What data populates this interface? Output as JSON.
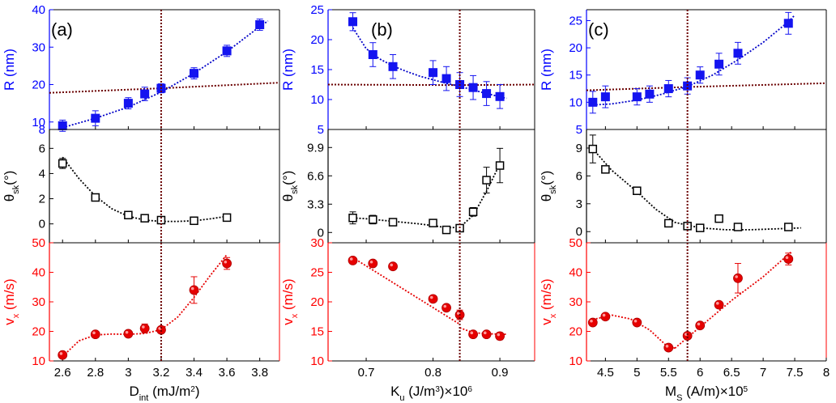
{
  "columns": [
    {
      "panel_label": "(a)",
      "x_label_main": "D",
      "x_label_sub": "int",
      "x_label_rest": " (mJ/m",
      "x_label_sup": "2",
      "x_label_end": ")",
      "x_range": [
        2.52,
        3.92
      ],
      "x_ticks": [
        2.6,
        2.8,
        3.0,
        3.2,
        3.4,
        3.6,
        3.8
      ],
      "x_tick_labels": [
        "2.6",
        "2.8",
        "3",
        "3.2",
        "3.4",
        "3.6",
        "3.8"
      ],
      "vline": 3.2
    },
    {
      "panel_label": "(b)",
      "x_label_main": "K",
      "x_label_sub": "u",
      "x_label_rest": " (J/m",
      "x_label_sup": "3",
      "x_label_end": ")×10",
      "x_label_sup2": "6",
      "x_range": [
        0.643,
        0.952
      ],
      "x_ticks": [
        0.7,
        0.8,
        0.9
      ],
      "x_tick_labels": [
        "0.7",
        "0.8",
        "0.9"
      ],
      "vline": 0.84
    },
    {
      "panel_label": "(c)",
      "x_label_main": "M",
      "x_label_sub": "S",
      "x_label_rest": " (A/m)×10",
      "x_label_sup": "5",
      "x_label_end": "",
      "x_range": [
        4.2,
        8.0
      ],
      "x_ticks": [
        4.5,
        5,
        5.5,
        6,
        6.5,
        7,
        7.5,
        8
      ],
      "x_tick_labels": [
        "4.5",
        "5",
        "5.5",
        "6",
        "6.5",
        "7",
        "7.5",
        "8"
      ],
      "vline": 5.8
    }
  ],
  "rows": [
    {
      "label_main": "R (nm)",
      "color": "#0000ff"
    },
    {
      "label_main": "θ",
      "label_sub": "sk",
      "label_rest": "(°)",
      "color": "#000000"
    },
    {
      "label_main": "v",
      "label_sub": "x",
      "label_rest": " (m/s)",
      "color": "#ff0000"
    }
  ],
  "chart_data": [
    {
      "id": "a-R",
      "type": "scatter",
      "ylabel": "R (nm)",
      "ylim": [
        8,
        40
      ],
      "yticks": [
        10,
        20,
        30,
        40
      ],
      "ytick_labels": [
        "10",
        "20",
        "30",
        "40"
      ],
      "ymin_label": "8",
      "x": [
        2.6,
        2.8,
        3.0,
        3.1,
        3.2,
        3.4,
        3.6,
        3.8
      ],
      "y": [
        9,
        11,
        15,
        17.5,
        19,
        23,
        29,
        36
      ],
      "err": [
        1.5,
        2,
        1.5,
        1.8,
        1.2,
        1.5,
        1.5,
        1.5
      ],
      "marker": "square-filled",
      "color": "#1414f0",
      "fit": [
        [
          2.6,
          8.5
        ],
        [
          2.8,
          11
        ],
        [
          3.0,
          14
        ],
        [
          3.2,
          18
        ],
        [
          3.4,
          23
        ],
        [
          3.6,
          28.8
        ],
        [
          3.8,
          35.5
        ],
        [
          3.85,
          37
        ]
      ],
      "fit_color": "#0000c8",
      "ref_line": [
        [
          2.52,
          17.8
        ],
        [
          3.2,
          19
        ],
        [
          3.92,
          20.5
        ]
      ]
    },
    {
      "id": "a-theta",
      "type": "scatter",
      "ylabel": "θsk(°)",
      "ylim": [
        -1.5,
        7.5
      ],
      "yticks": [
        0,
        2,
        4,
        6
      ],
      "ytick_labels": [
        "0",
        "2",
        "4",
        "6"
      ],
      "x": [
        2.6,
        2.8,
        3.0,
        3.1,
        3.2,
        3.4,
        3.6
      ],
      "y": [
        4.8,
        2.1,
        0.7,
        0.45,
        0.3,
        0.25,
        0.5
      ],
      "err": [
        0.4,
        0.1,
        0.1,
        0.1,
        0.1,
        0.1,
        0.1
      ],
      "marker": "square-open",
      "color": "#000000",
      "fit": [
        [
          2.6,
          5.3
        ],
        [
          2.7,
          3.6
        ],
        [
          2.8,
          2.2
        ],
        [
          2.9,
          1.2
        ],
        [
          3.0,
          0.6
        ],
        [
          3.1,
          0.3
        ],
        [
          3.2,
          0.2
        ],
        [
          3.3,
          0.2
        ],
        [
          3.4,
          0.25
        ],
        [
          3.5,
          0.4
        ],
        [
          3.6,
          0.6
        ]
      ],
      "fit_color": "#000000"
    },
    {
      "id": "a-v",
      "type": "scatter",
      "ylabel": "vx (m/s)",
      "ylim": [
        10,
        50
      ],
      "yticks": [
        10,
        20,
        30,
        40,
        50
      ],
      "ytick_labels": [
        "10",
        "20",
        "30",
        "40",
        "50"
      ],
      "x": [
        2.6,
        2.8,
        3.0,
        3.1,
        3.2,
        3.4,
        3.6
      ],
      "y": [
        12,
        19,
        19.2,
        21,
        20.5,
        34,
        43
      ],
      "err": [
        0,
        0,
        0,
        1.5,
        0,
        4.5,
        2
      ],
      "marker": "circle-filled",
      "color": "#e60000",
      "fit": [
        [
          2.6,
          11.5
        ],
        [
          2.7,
          16.8
        ],
        [
          2.8,
          18.8
        ],
        [
          2.9,
          19.1
        ],
        [
          3.0,
          19.0
        ],
        [
          3.1,
          19.3
        ],
        [
          3.2,
          20.6
        ],
        [
          3.3,
          24.8
        ],
        [
          3.4,
          31.5
        ],
        [
          3.5,
          39.0
        ],
        [
          3.6,
          46
        ]
      ],
      "fit_color": "#e60000"
    },
    {
      "id": "b-R",
      "type": "scatter",
      "ylabel": "R (nm)",
      "ylim": [
        5,
        25
      ],
      "yticks": [
        5,
        10,
        15,
        20,
        25
      ],
      "ytick_labels": [
        "5",
        "10",
        "15",
        "20",
        "25"
      ],
      "x": [
        0.68,
        0.71,
        0.74,
        0.8,
        0.82,
        0.84,
        0.86,
        0.88,
        0.9
      ],
      "y": [
        23,
        17.5,
        15.5,
        14.5,
        13.5,
        12.5,
        12,
        11,
        10.5
      ],
      "err": [
        1.5,
        2,
        2,
        2,
        2,
        2,
        2,
        2,
        2
      ],
      "marker": "square-filled",
      "color": "#1414f0",
      "fit": [
        [
          0.68,
          22.0
        ],
        [
          0.7,
          18.5
        ],
        [
          0.72,
          16.8
        ],
        [
          0.74,
          15.6
        ],
        [
          0.76,
          14.7
        ],
        [
          0.78,
          13.9
        ],
        [
          0.8,
          13.3
        ],
        [
          0.82,
          12.7
        ],
        [
          0.84,
          12.2
        ],
        [
          0.86,
          11.6
        ],
        [
          0.88,
          11.0
        ],
        [
          0.91,
          10.2
        ]
      ],
      "fit_color": "#0000c8",
      "ref_line": [
        [
          0.643,
          12.5
        ],
        [
          0.84,
          12.4
        ],
        [
          0.952,
          12.5
        ]
      ]
    },
    {
      "id": "b-theta",
      "type": "scatter",
      "ylabel": "θsk(°)",
      "ylim": [
        -1.2,
        12
      ],
      "yticks": [
        0,
        3.3,
        6.6,
        9.9
      ],
      "ytick_labels": [
        "0",
        "3.3",
        "6.6",
        "9.9"
      ],
      "x": [
        0.68,
        0.71,
        0.74,
        0.8,
        0.82,
        0.84,
        0.86,
        0.88,
        0.9
      ],
      "y": [
        1.7,
        1.5,
        1.2,
        1.1,
        0.3,
        0.5,
        2.4,
        6.1,
        7.8
      ],
      "err": [
        0.7,
        0.5,
        0.3,
        0.3,
        0.2,
        0.2,
        0.5,
        1.5,
        2
      ],
      "marker": "square-open",
      "color": "#000000",
      "fit": [
        [
          0.68,
          1.7
        ],
        [
          0.7,
          1.6
        ],
        [
          0.72,
          1.45
        ],
        [
          0.74,
          1.3
        ],
        [
          0.76,
          1.15
        ],
        [
          0.78,
          1.0
        ],
        [
          0.8,
          0.8
        ],
        [
          0.82,
          0.55
        ],
        [
          0.84,
          0.6
        ],
        [
          0.86,
          2.0
        ],
        [
          0.88,
          4.8
        ],
        [
          0.9,
          8.0
        ]
      ],
      "fit_color": "#000000"
    },
    {
      "id": "b-v",
      "type": "scatter",
      "ylabel": "vx (m/s)",
      "ylim": [
        10,
        30
      ],
      "yticks": [
        10,
        15,
        20,
        25,
        30
      ],
      "ytick_labels": [
        "10",
        "15",
        "20",
        "25",
        "30"
      ],
      "x": [
        0.68,
        0.71,
        0.74,
        0.8,
        0.82,
        0.84,
        0.86,
        0.88,
        0.9
      ],
      "y": [
        27,
        26.5,
        26,
        20.5,
        19,
        17.8,
        14.5,
        14.5,
        14.2
      ],
      "err": [
        0,
        0,
        0,
        0,
        0,
        0.8,
        0,
        0,
        0.6
      ],
      "marker": "circle-filled",
      "color": "#e60000",
      "fit": [
        [
          0.68,
          27.5
        ],
        [
          0.84,
          16.2
        ]
      ],
      "fit2": [
        [
          0.84,
          15.6
        ],
        [
          0.86,
          14.8
        ],
        [
          0.88,
          14.6
        ],
        [
          0.91,
          14.5
        ]
      ],
      "fit_color": "#e60000"
    },
    {
      "id": "c-R",
      "type": "scatter",
      "ylabel": "R (nm)",
      "ylim": [
        5,
        27
      ],
      "yticks": [
        5,
        10,
        15,
        20,
        25
      ],
      "ytick_labels": [
        "5",
        "10",
        "15",
        "20",
        "25"
      ],
      "x": [
        4.3,
        4.5,
        5.0,
        5.2,
        5.5,
        5.8,
        6.0,
        6.3,
        6.6,
        7.4
      ],
      "y": [
        10,
        11,
        11,
        11.5,
        12.5,
        13,
        15,
        17,
        19,
        24.5
      ],
      "err": [
        2,
        2,
        1.5,
        1.5,
        1.5,
        1.5,
        1.5,
        2,
        2,
        2
      ],
      "marker": "square-filled",
      "color": "#1414f0",
      "fit": [
        [
          4.3,
          9.5
        ],
        [
          4.6,
          9.7
        ],
        [
          5.0,
          10.4
        ],
        [
          5.4,
          11.5
        ],
        [
          5.8,
          12.9
        ],
        [
          6.2,
          15.0
        ],
        [
          6.6,
          17.8
        ],
        [
          7.0,
          21.0
        ],
        [
          7.4,
          24.8
        ],
        [
          7.5,
          26
        ]
      ],
      "fit_color": "#0000c8",
      "ref_line": [
        [
          4.2,
          12.2
        ],
        [
          5.8,
          12.8
        ],
        [
          8.0,
          13.5
        ]
      ]
    },
    {
      "id": "c-theta",
      "type": "scatter",
      "ylabel": "θsk(°)",
      "ylim": [
        -1.2,
        11
      ],
      "yticks": [
        0,
        3,
        6,
        9
      ],
      "ytick_labels": [
        "0",
        "3",
        "6",
        "9"
      ],
      "x": [
        4.3,
        4.5,
        5.0,
        5.5,
        5.8,
        6.0,
        6.3,
        6.6,
        7.4
      ],
      "y": [
        8.9,
        6.7,
        4.4,
        0.9,
        0.6,
        0.4,
        1.4,
        0.5,
        0.5
      ],
      "err": [
        1.5,
        0.3,
        0.3,
        0.2,
        0.2,
        0.2,
        0.3,
        0.2,
        0.2
      ],
      "marker": "square-open",
      "color": "#000000",
      "fit": [
        [
          4.3,
          8.9
        ],
        [
          4.6,
          6.6
        ],
        [
          5.0,
          4.3
        ],
        [
          5.3,
          2.4
        ],
        [
          5.6,
          1.0
        ],
        [
          6.0,
          0.4
        ],
        [
          6.4,
          0.2
        ],
        [
          6.8,
          0.2
        ],
        [
          7.2,
          0.3
        ],
        [
          7.6,
          0.4
        ]
      ],
      "fit_color": "#000000"
    },
    {
      "id": "c-v",
      "type": "scatter",
      "ylabel": "vx (m/s)",
      "ylim": [
        10,
        50
      ],
      "yticks": [
        10,
        20,
        30,
        40,
        50
      ],
      "ytick_labels": [
        "10",
        "20",
        "30",
        "40",
        "50"
      ],
      "x": [
        4.3,
        4.5,
        5.0,
        5.5,
        5.8,
        6.0,
        6.3,
        6.6,
        7.4
      ],
      "y": [
        23,
        25,
        23,
        14.5,
        18.5,
        22,
        29,
        38,
        44.5
      ],
      "err": [
        0,
        0,
        0,
        0,
        0,
        0,
        0,
        5,
        2
      ],
      "marker": "circle-filled",
      "color": "#e60000",
      "fit": [
        [
          4.3,
          24.0
        ],
        [
          4.6,
          25.5
        ],
        [
          4.9,
          24.2
        ],
        [
          5.2,
          20.5
        ],
        [
          5.45,
          15.5
        ],
        [
          5.6,
          14.3
        ]
      ],
      "fit2": [
        [
          5.6,
          14.3
        ],
        [
          6.0,
          21.5
        ],
        [
          6.5,
          30.5
        ],
        [
          7.0,
          38.5
        ],
        [
          7.45,
          47
        ]
      ],
      "fit_color": "#e60000"
    }
  ]
}
